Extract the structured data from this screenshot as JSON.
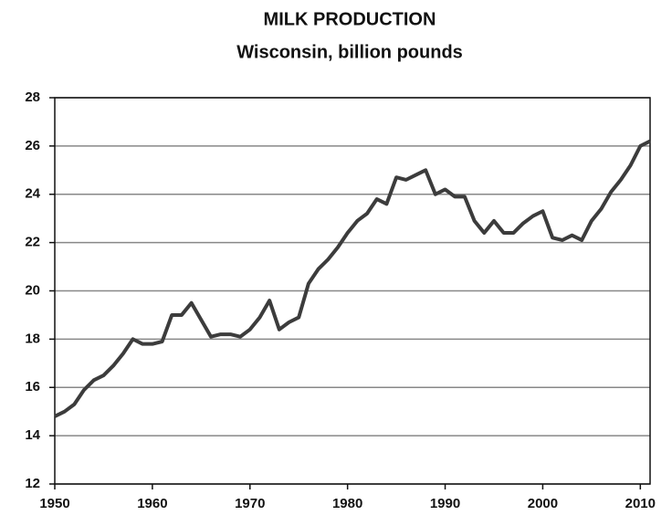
{
  "chart_data": {
    "type": "line",
    "title": "MILK PRODUCTION",
    "subtitle": "Wisconsin, billion pounds",
    "x": [
      1950,
      1951,
      1952,
      1953,
      1954,
      1955,
      1956,
      1957,
      1958,
      1959,
      1960,
      1961,
      1962,
      1963,
      1964,
      1965,
      1966,
      1967,
      1968,
      1969,
      1970,
      1971,
      1972,
      1973,
      1974,
      1975,
      1976,
      1977,
      1978,
      1979,
      1980,
      1981,
      1982,
      1983,
      1984,
      1985,
      1986,
      1987,
      1988,
      1989,
      1990,
      1991,
      1992,
      1993,
      1994,
      1995,
      1996,
      1997,
      1998,
      1999,
      2000,
      2001,
      2002,
      2003,
      2004,
      2005,
      2006,
      2007,
      2008,
      2009,
      2010,
      2011
    ],
    "series": [
      {
        "color": "#3c3c3c",
        "values": [
          14.8,
          15.0,
          15.3,
          15.9,
          16.3,
          16.5,
          16.9,
          17.4,
          18.0,
          17.8,
          17.8,
          17.9,
          19.0,
          19.0,
          19.5,
          18.8,
          18.1,
          18.2,
          18.2,
          18.1,
          18.4,
          18.9,
          19.6,
          18.4,
          18.7,
          18.9,
          20.3,
          20.9,
          21.3,
          21.8,
          22.4,
          22.9,
          23.2,
          23.8,
          23.6,
          24.7,
          24.6,
          24.8,
          25.0,
          24.0,
          24.2,
          23.9,
          23.9,
          22.9,
          22.4,
          22.9,
          22.4,
          22.4,
          22.8,
          23.1,
          23.3,
          22.2,
          22.1,
          22.3,
          22.1,
          22.9,
          23.4,
          24.1,
          24.6,
          25.2,
          26.0,
          26.2
        ]
      }
    ],
    "xlim": [
      1950,
      2011
    ],
    "xticks": [
      1950,
      1960,
      1970,
      1980,
      1990,
      2000,
      2010
    ],
    "ylim": [
      12,
      28
    ],
    "yticks": [
      12,
      14,
      16,
      18,
      20,
      22,
      24,
      26,
      28
    ],
    "grid": true
  }
}
